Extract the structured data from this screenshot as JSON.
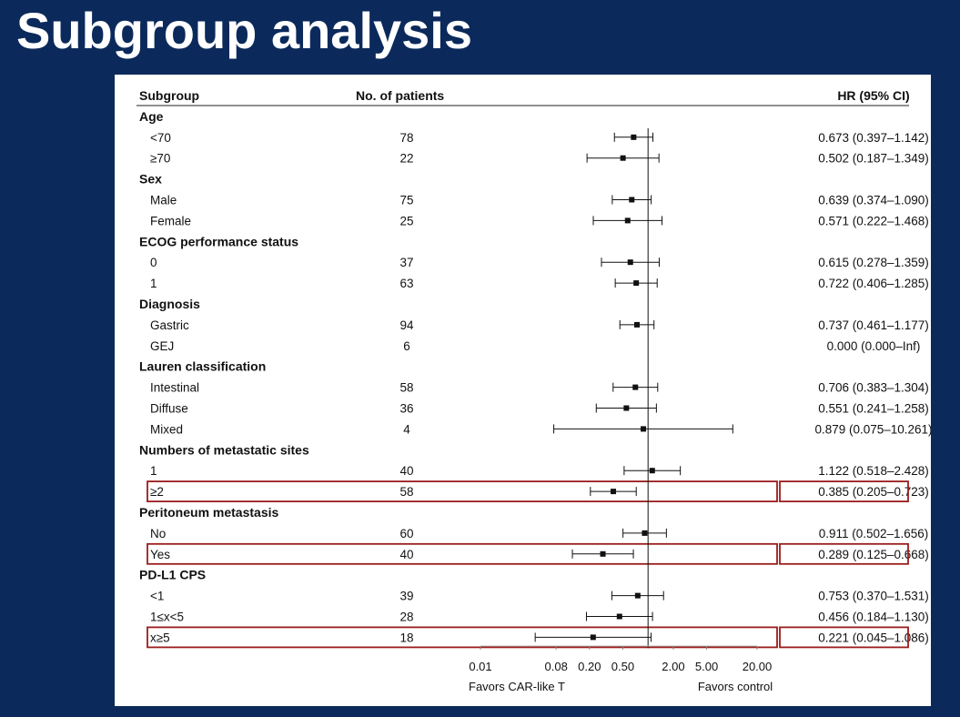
{
  "slide": {
    "title": "Subgroup analysis"
  },
  "chart_data": {
    "type": "forest",
    "columns": {
      "subgroup": "Subgroup",
      "patients": "No. of patients",
      "hr": "HR (95% CI)"
    },
    "x_scale": "log",
    "reference_line": 1,
    "x_ticks": [
      "0.01",
      "0.08",
      "0.20",
      "0.50",
      "2.00",
      "5.00",
      "20.00"
    ],
    "x_tick_values": [
      0.01,
      0.08,
      0.2,
      0.5,
      2,
      5,
      20
    ],
    "favors_left": "Favors CAR-like T",
    "favors_right": "Favors control",
    "rows": [
      {
        "kind": "group",
        "label": "Age"
      },
      {
        "kind": "item",
        "label": "<70",
        "n": "78",
        "hr": 0.673,
        "lo": 0.397,
        "hi": 1.142,
        "hr_text": "0.673 (0.397–1.142)"
      },
      {
        "kind": "item",
        "label": "≥70",
        "n": "22",
        "hr": 0.502,
        "lo": 0.187,
        "hi": 1.349,
        "hr_text": "0.502 (0.187–1.349)"
      },
      {
        "kind": "group",
        "label": "Sex"
      },
      {
        "kind": "item",
        "label": "Male",
        "n": "75",
        "hr": 0.639,
        "lo": 0.374,
        "hi": 1.09,
        "hr_text": "0.639 (0.374–1.090)"
      },
      {
        "kind": "item",
        "label": "Female",
        "n": "25",
        "hr": 0.571,
        "lo": 0.222,
        "hi": 1.468,
        "hr_text": "0.571 (0.222–1.468)"
      },
      {
        "kind": "group",
        "label": "ECOG performance status"
      },
      {
        "kind": "item",
        "label": "0",
        "n": "37",
        "hr": 0.615,
        "lo": 0.278,
        "hi": 1.359,
        "hr_text": "0.615 (0.278–1.359)"
      },
      {
        "kind": "item",
        "label": "1",
        "n": "63",
        "hr": 0.722,
        "lo": 0.406,
        "hi": 1.285,
        "hr_text": "0.722 (0.406–1.285)"
      },
      {
        "kind": "group",
        "label": "Diagnosis"
      },
      {
        "kind": "item",
        "label": "Gastric",
        "n": "94",
        "hr": 0.737,
        "lo": 0.461,
        "hi": 1.177,
        "hr_text": "0.737 (0.461–1.177)"
      },
      {
        "kind": "item",
        "label": "GEJ",
        "n": "6",
        "hr": null,
        "lo": null,
        "hi": null,
        "hr_text": "0.000 (0.000–Inf)"
      },
      {
        "kind": "group",
        "label": "Lauren classification"
      },
      {
        "kind": "item",
        "label": "Intestinal",
        "n": "58",
        "hr": 0.706,
        "lo": 0.383,
        "hi": 1.304,
        "hr_text": "0.706 (0.383–1.304)"
      },
      {
        "kind": "item",
        "label": "Diffuse",
        "n": "36",
        "hr": 0.551,
        "lo": 0.241,
        "hi": 1.258,
        "hr_text": "0.551 (0.241–1.258)"
      },
      {
        "kind": "item",
        "label": "Mixed",
        "n": "4",
        "hr": 0.879,
        "lo": 0.075,
        "hi": 10.261,
        "hr_text": "0.879 (0.075–10.261)"
      },
      {
        "kind": "group",
        "label": "Numbers of metastatic sites"
      },
      {
        "kind": "item",
        "label": "1",
        "n": "40",
        "hr": 1.122,
        "lo": 0.518,
        "hi": 2.428,
        "hr_text": "1.122 (0.518–2.428)"
      },
      {
        "kind": "item",
        "label": "≥2",
        "n": "58",
        "hr": 0.385,
        "lo": 0.205,
        "hi": 0.723,
        "hr_text": "0.385 (0.205–0.723)",
        "highlight": true
      },
      {
        "kind": "group",
        "label": "Peritoneum metastasis"
      },
      {
        "kind": "item",
        "label": "No",
        "n": "60",
        "hr": 0.911,
        "lo": 0.502,
        "hi": 1.656,
        "hr_text": "0.911 (0.502–1.656)"
      },
      {
        "kind": "item",
        "label": "Yes",
        "n": "40",
        "hr": 0.289,
        "lo": 0.125,
        "hi": 0.668,
        "hr_text": "0.289 (0.125–0.668)",
        "highlight": true
      },
      {
        "kind": "group",
        "label": "PD-L1 CPS"
      },
      {
        "kind": "item",
        "label": "<1",
        "n": "39",
        "hr": 0.753,
        "lo": 0.37,
        "hi": 1.531,
        "hr_text": "0.753 (0.370–1.531)"
      },
      {
        "kind": "item",
        "label": "1≤x<5",
        "n": "28",
        "hr": 0.456,
        "lo": 0.184,
        "hi": 1.13,
        "hr_text": "0.456 (0.184–1.130)"
      },
      {
        "kind": "item",
        "label": "x≥5",
        "n": "18",
        "hr": 0.221,
        "lo": 0.045,
        "hi": 1.086,
        "hr_text": "0.221 (0.045–1.086)",
        "highlight": true
      }
    ],
    "highlight_color": "#9b1c1c",
    "background": "#0b2a5b"
  }
}
